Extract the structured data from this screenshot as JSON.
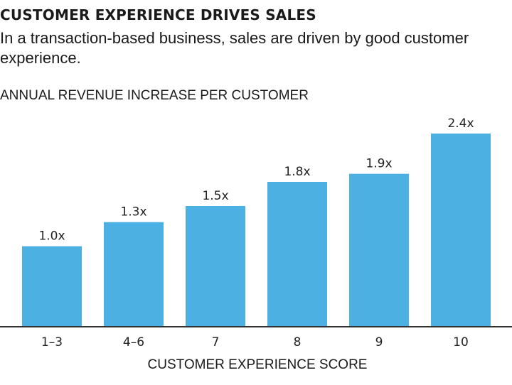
{
  "chart_data": {
    "type": "bar",
    "title": "CUSTOMER EXPERIENCE DRIVES SALES",
    "subtitle": "In a transaction-based business, sales are driven by good customer experience.",
    "ylabel": "ANNUAL REVENUE INCREASE PER CUSTOMER",
    "xlabel": "CUSTOMER EXPERIENCE SCORE",
    "categories": [
      "1–3",
      "4–6",
      "7",
      "8",
      "9",
      "10"
    ],
    "values": [
      1.0,
      1.3,
      1.5,
      1.8,
      1.9,
      2.4
    ],
    "data_labels": [
      "1.0x",
      "1.3x",
      "1.5x",
      "1.8x",
      "1.9x",
      "2.4x"
    ],
    "ylim": [
      0,
      2.4
    ],
    "grid": false,
    "bar_color": "#4cb0e3",
    "axis_color": "#333333"
  }
}
